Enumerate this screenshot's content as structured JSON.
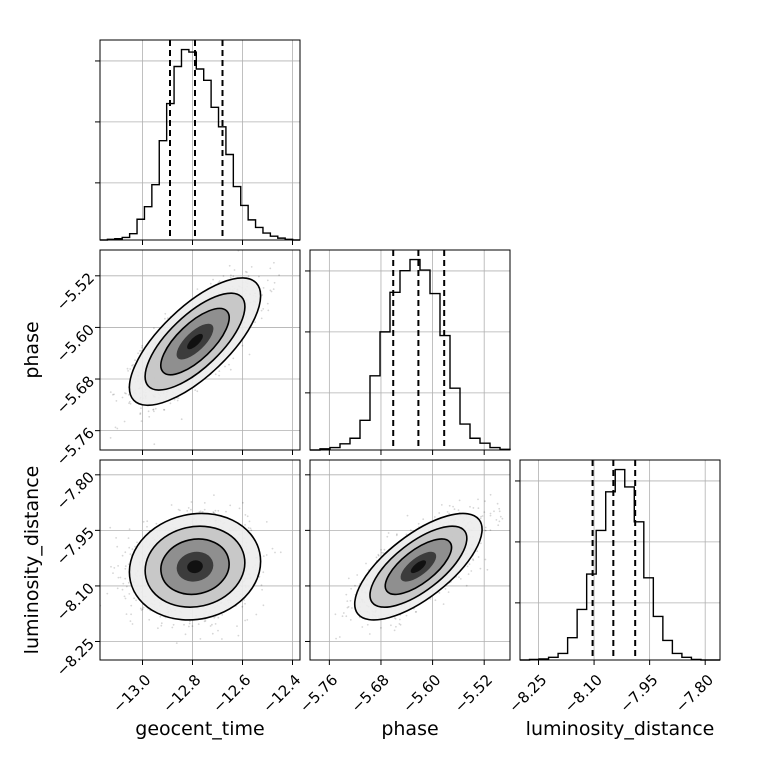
{
  "chart_data": {
    "type": "corner",
    "parameters": [
      "geocent_time",
      "phase",
      "luminosity_distance"
    ],
    "ranges": {
      "geocent_time": [
        -13.17,
        -12.37
      ],
      "phase": [
        -5.79,
        -5.48
      ],
      "luminosity_distance": [
        -8.3,
        -7.76
      ]
    },
    "tick_labels": {
      "geocent_time": [
        "−13.0",
        "−12.8",
        "−12.6",
        "−12.4"
      ],
      "phase": [
        "−5.76",
        "−5.68",
        "−5.60",
        "−5.52"
      ],
      "luminosity_distance": [
        "−8.25",
        "−8.10",
        "−7.95",
        "−7.80"
      ]
    },
    "ticks": {
      "geocent_time": [
        -13.0,
        -12.8,
        -12.6,
        -12.4
      ],
      "phase": [
        -5.76,
        -5.68,
        -5.6,
        -5.52
      ],
      "luminosity_distance": [
        -8.25,
        -8.1,
        -7.95,
        -7.8
      ]
    },
    "quantiles": {
      "geocent_time": [
        -12.89,
        -12.79,
        -12.68
      ],
      "phase": [
        -5.661,
        -5.622,
        -5.582
      ],
      "luminosity_distance": [
        -8.104,
        -8.048,
        -7.989
      ]
    },
    "hist_counts": {
      "geocent_time": [
        0,
        1,
        2,
        4,
        10,
        33,
        53,
        88,
        158,
        217,
        276,
        303,
        299,
        272,
        254,
        211,
        180,
        136,
        85,
        55,
        32,
        20,
        11,
        6,
        3,
        1,
        0
      ],
      "phase": [
        0,
        2,
        4,
        10,
        19,
        48,
        120,
        191,
        255,
        290,
        308,
        291,
        253,
        185,
        100,
        42,
        19,
        11,
        4,
        1
      ],
      "luminosity_distance": [
        0,
        1,
        2,
        5,
        12,
        41,
        93,
        158,
        238,
        309,
        350,
        318,
        254,
        151,
        80,
        36,
        12,
        5,
        1,
        0,
        0
      ]
    },
    "correlations": {
      "phase|geocent_time": 0.72,
      "luminosity_distance|geocent_time": 0.1,
      "luminosity_distance|phase": 0.7
    },
    "grid": true,
    "xlabel_bottom": [
      "geocent_time",
      "phase",
      "luminosity_distance"
    ],
    "ylabel_left": [
      "phase",
      "luminosity_distance"
    ]
  },
  "colors": {
    "line": "#000000",
    "grid": "#b0b0b0",
    "points": "#000000",
    "contour_fill_dark": "#1a1a1a",
    "contour_fill_light": "#ededed"
  }
}
